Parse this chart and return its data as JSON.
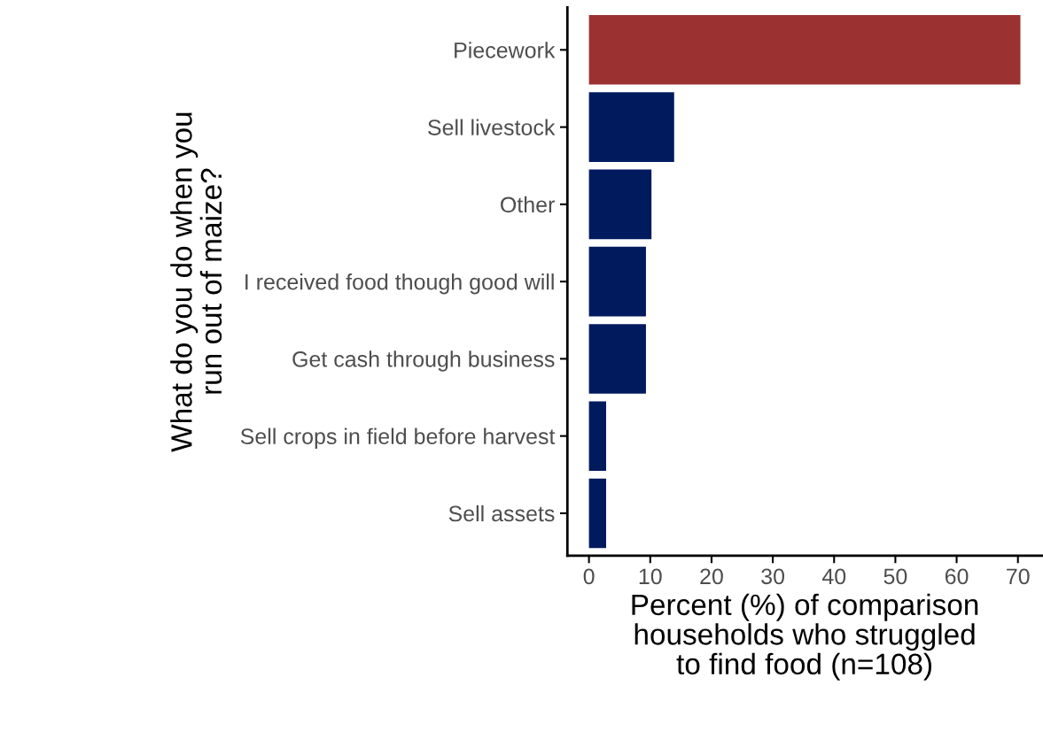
{
  "chart_data": {
    "type": "bar",
    "orientation": "horizontal",
    "categories": [
      "Piecework",
      "Sell livestock",
      "Other",
      "I received food though good will",
      "Get cash through business",
      "Sell crops in field before harvest",
      "Sell assets"
    ],
    "values": [
      70.4,
      13.9,
      10.2,
      9.3,
      9.3,
      2.8,
      2.8
    ],
    "colors": [
      "#9b3131",
      "#001a5e",
      "#001a5e",
      "#001a5e",
      "#001a5e",
      "#001a5e",
      "#001a5e"
    ],
    "xlim": [
      -3.52,
      73.92
    ],
    "xticks": [
      0,
      10,
      20,
      30,
      40,
      50,
      60,
      70
    ],
    "xlabel": "Percent (%) of comparison\nhouseholds who struggled\nto find food (n=108)",
    "ylabel": "What do you do when you\nrun out of maize?",
    "grid": false,
    "legend": false
  }
}
